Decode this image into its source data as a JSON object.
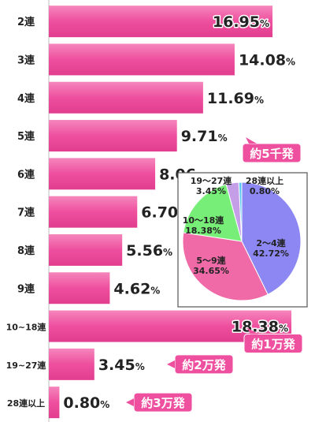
{
  "chart_data": [
    {
      "type": "bar",
      "orientation": "horizontal",
      "categories": [
        "2連",
        "3連",
        "4連",
        "5連",
        "6連",
        "7連",
        "8連",
        "9連",
        "10~18連",
        "19~27連",
        "28連以上"
      ],
      "values": [
        16.95,
        14.08,
        11.69,
        9.71,
        8.06,
        6.7,
        5.56,
        4.62,
        18.38,
        3.45,
        0.8
      ],
      "value_labels": [
        "16.95",
        "14.08",
        "11.69",
        "9.71",
        "8.06",
        "6.70",
        "5.56",
        "4.62",
        "18.38",
        "3.45",
        "0.80"
      ],
      "unit": "%",
      "xlim": [
        0,
        18.38
      ],
      "grid": false,
      "bar_color": "#ee4f9e",
      "callouts": [
        {
          "category": "5連",
          "text": "約5千発"
        },
        {
          "category": "10~18連",
          "text": "約1万発"
        },
        {
          "category": "19~27連",
          "text": "約2万発"
        },
        {
          "category": "28連以上",
          "text": "約3万発"
        }
      ],
      "callout_color": "#ee4f9e"
    },
    {
      "type": "pie",
      "slices": [
        {
          "label": "2〜4連",
          "value": 42.72,
          "value_label": "42.72%",
          "color": "#8c87f3"
        },
        {
          "label": "5〜9連",
          "value": 34.65,
          "value_label": "34.65%",
          "color": "#f06aa8"
        },
        {
          "label": "10〜18連",
          "value": 18.38,
          "value_label": "18.38%",
          "color": "#77ee77"
        },
        {
          "label": "19〜27連",
          "value": 3.45,
          "value_label": "3.45%",
          "color": "#c59ee8"
        },
        {
          "label": "28連以上",
          "value": 0.8,
          "value_label": "0.80%",
          "color": "#5cc7f0"
        }
      ]
    }
  ]
}
